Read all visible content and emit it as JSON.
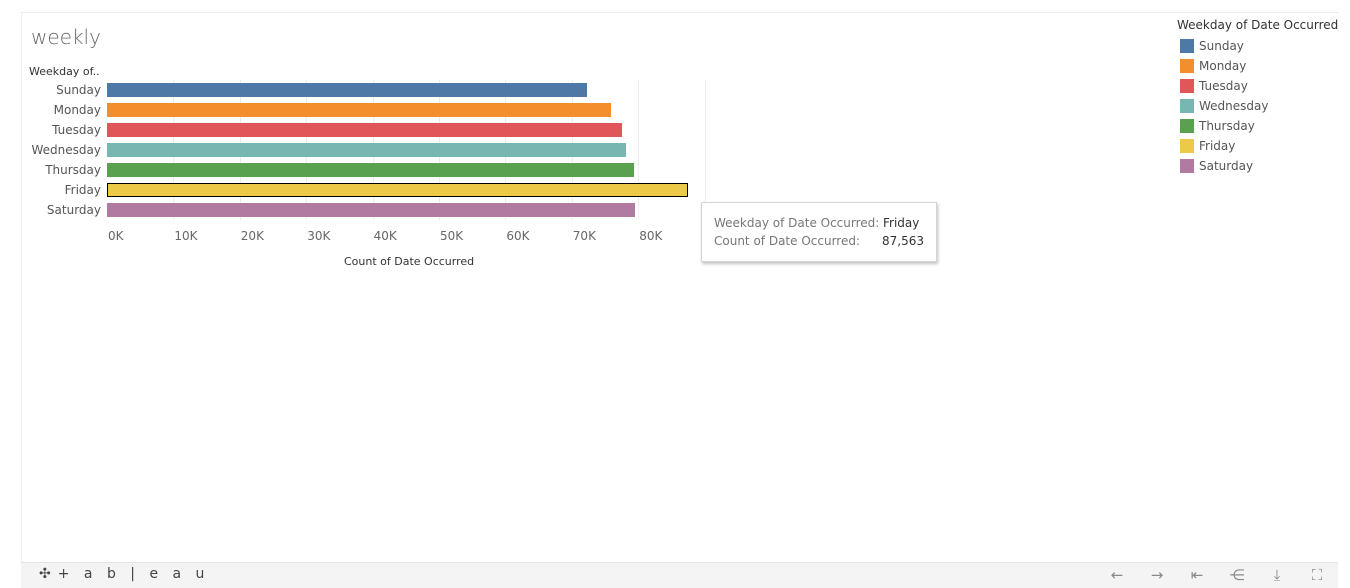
{
  "title": "weekly",
  "row_header": "Weekday of..",
  "chart_data": {
    "type": "bar",
    "orientation": "horizontal",
    "categories": [
      "Sunday",
      "Monday",
      "Tuesday",
      "Wednesday",
      "Thursday",
      "Friday",
      "Saturday"
    ],
    "values": [
      72300,
      75900,
      77600,
      78100,
      79400,
      87563,
      79500
    ],
    "colors": [
      "#4e79a7",
      "#f28e2b",
      "#e15759",
      "#76b7b2",
      "#59a14f",
      "#edc948",
      "#b07aa1"
    ],
    "xlabel": "Count of Date Occurred",
    "ticks": [
      "0K",
      "10K",
      "20K",
      "30K",
      "40K",
      "50K",
      "60K",
      "70K",
      "80K",
      "90"
    ],
    "xlim": [
      0,
      90000
    ],
    "highlighted": "Friday",
    "grid": true
  },
  "tooltip": {
    "row1_key": "Weekday of Date Occurred:",
    "row1_value": "Friday",
    "row2_key": "Count of Date Occurred:",
    "row2_value": "87,563"
  },
  "legend": {
    "title": "Weekday of Date Occurred",
    "items": [
      "Sunday",
      "Monday",
      "Tuesday",
      "Wednesday",
      "Thursday",
      "Friday",
      "Saturday"
    ]
  },
  "toolbar": {
    "logo_text": "+ a b | e a u",
    "icons": [
      "undo-icon",
      "redo-icon",
      "revert-icon",
      "share-icon",
      "download-icon",
      "fullscreen-icon"
    ]
  }
}
